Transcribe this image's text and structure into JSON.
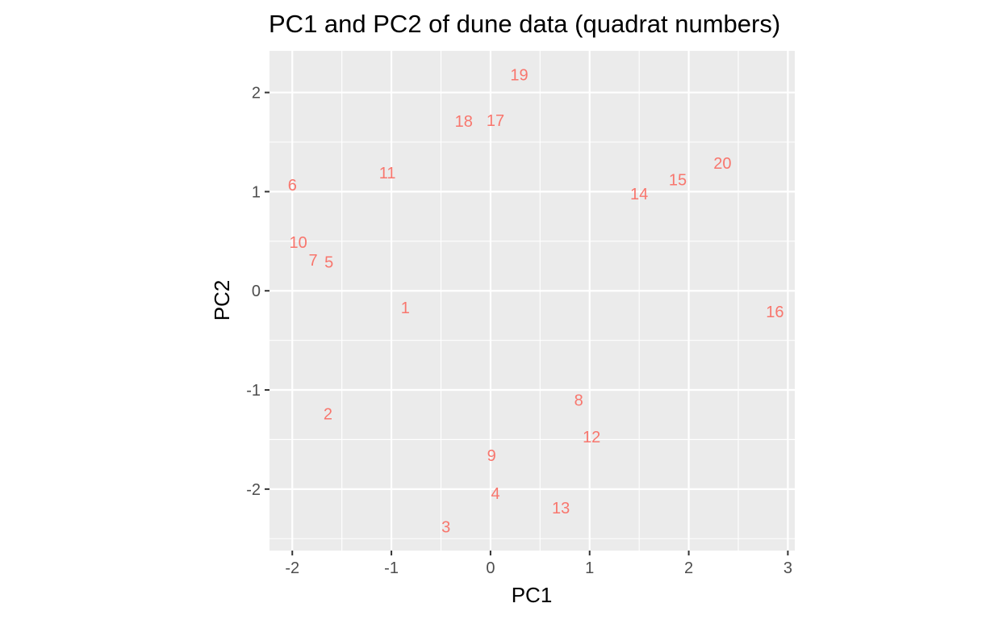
{
  "chart_data": {
    "type": "scatter",
    "title": "PC1 and PC2 of dune data (quadrat numbers)",
    "xlabel": "PC1",
    "ylabel": "PC2",
    "xlim": [
      -2.23,
      3.07
    ],
    "ylim": [
      -2.62,
      2.42
    ],
    "x_ticks": [
      -2,
      -1,
      0,
      1,
      2,
      3
    ],
    "y_ticks": [
      -2,
      -1,
      0,
      1,
      2
    ],
    "x_tick_labels": [
      "-2",
      "-1",
      "0",
      "1",
      "2",
      "3"
    ],
    "y_tick_labels": [
      "-2",
      "-1",
      "0",
      "1",
      "2"
    ],
    "grid": true,
    "panel_background": "#ebebeb",
    "grid_color": "#ffffff",
    "point_color": "#f8766d",
    "points": [
      {
        "label": "1",
        "x": -0.86,
        "y": -0.17
      },
      {
        "label": "2",
        "x": -1.64,
        "y": -1.24
      },
      {
        "label": "3",
        "x": -0.45,
        "y": -2.38
      },
      {
        "label": "4",
        "x": 0.05,
        "y": -2.04
      },
      {
        "label": "5",
        "x": -1.63,
        "y": 0.29
      },
      {
        "label": "6",
        "x": -2.0,
        "y": 1.07
      },
      {
        "label": "7",
        "x": -1.79,
        "y": 0.31
      },
      {
        "label": "8",
        "x": 0.89,
        "y": -1.1
      },
      {
        "label": "9",
        "x": 0.01,
        "y": -1.66
      },
      {
        "label": "10",
        "x": -1.94,
        "y": 0.49
      },
      {
        "label": "11",
        "x": -1.04,
        "y": 1.19
      },
      {
        "label": "12",
        "x": 1.02,
        "y": -1.47
      },
      {
        "label": "13",
        "x": 0.71,
        "y": -2.19
      },
      {
        "label": "14",
        "x": 1.5,
        "y": 0.98
      },
      {
        "label": "15",
        "x": 1.89,
        "y": 1.12
      },
      {
        "label": "16",
        "x": 2.87,
        "y": -0.21
      },
      {
        "label": "17",
        "x": 0.05,
        "y": 1.72
      },
      {
        "label": "18",
        "x": -0.27,
        "y": 1.71
      },
      {
        "label": "19",
        "x": 0.29,
        "y": 2.18
      },
      {
        "label": "20",
        "x": 2.34,
        "y": 1.29
      }
    ]
  }
}
